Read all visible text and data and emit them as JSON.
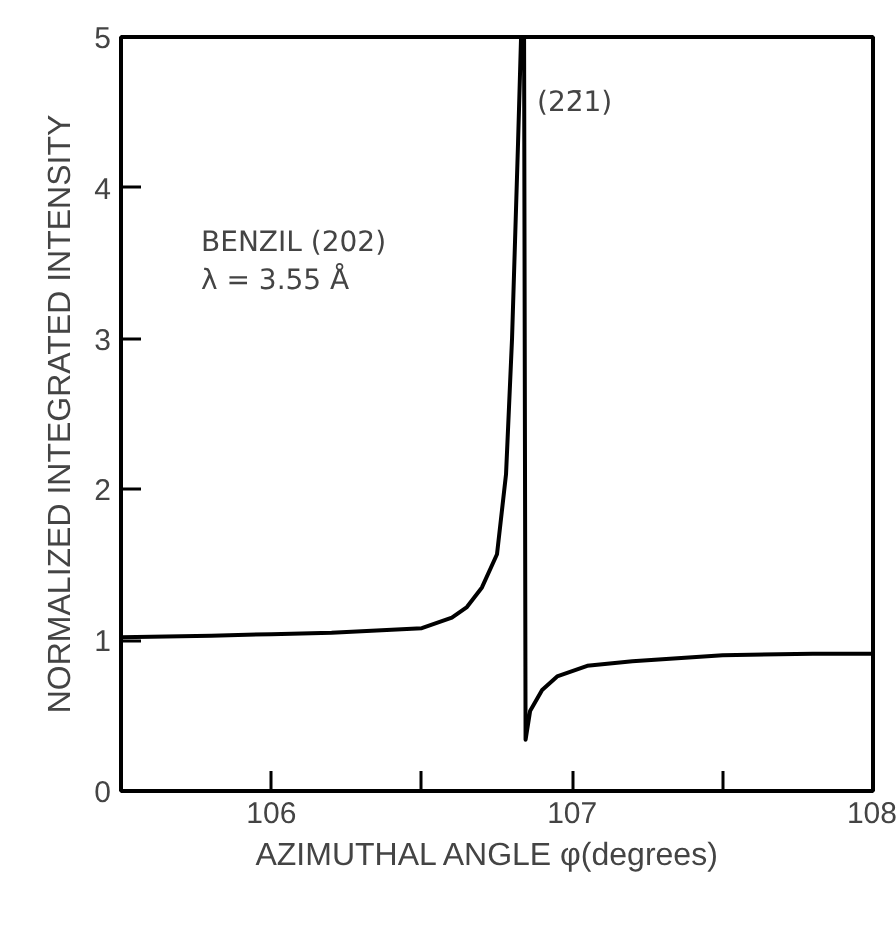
{
  "chart_data": {
    "type": "line",
    "xlabel": "AZIMUTHAL  ANGLE  φ(degrees)",
    "ylabel": "NORMALIZED INTEGRATED INTENSITY",
    "xlim": [
      105.5,
      108
    ],
    "ylim": [
      0,
      5
    ],
    "xticks": [
      106,
      {
        "value": 106.5,
        "label": null
      },
      107,
      {
        "value": 107.5,
        "label": null
      },
      108
    ],
    "yticks": [
      0,
      1,
      2,
      3,
      4,
      5
    ],
    "grid": false,
    "marker": "none",
    "line_style": "solid",
    "series": [
      {
        "color": "#000000",
        "x": [
          105.5,
          105.8,
          106.0,
          106.2,
          106.4,
          106.5,
          106.6,
          106.65,
          106.7,
          106.75,
          106.78,
          106.8,
          106.82,
          106.83,
          106.84,
          106.845,
          106.86,
          106.9,
          106.95,
          107.05,
          107.2,
          107.5,
          107.8,
          108.0
        ],
        "values": [
          1.02,
          1.03,
          1.04,
          1.05,
          1.07,
          1.08,
          1.15,
          1.22,
          1.35,
          1.57,
          2.1,
          3.0,
          4.3,
          5.0,
          5.0,
          0.34,
          0.53,
          0.67,
          0.76,
          0.83,
          0.86,
          0.9,
          0.91,
          0.91
        ]
      }
    ],
    "annotations": [
      "BENZIL (202)\nλ = 3.55 Å",
      "(22̄1)"
    ]
  }
}
